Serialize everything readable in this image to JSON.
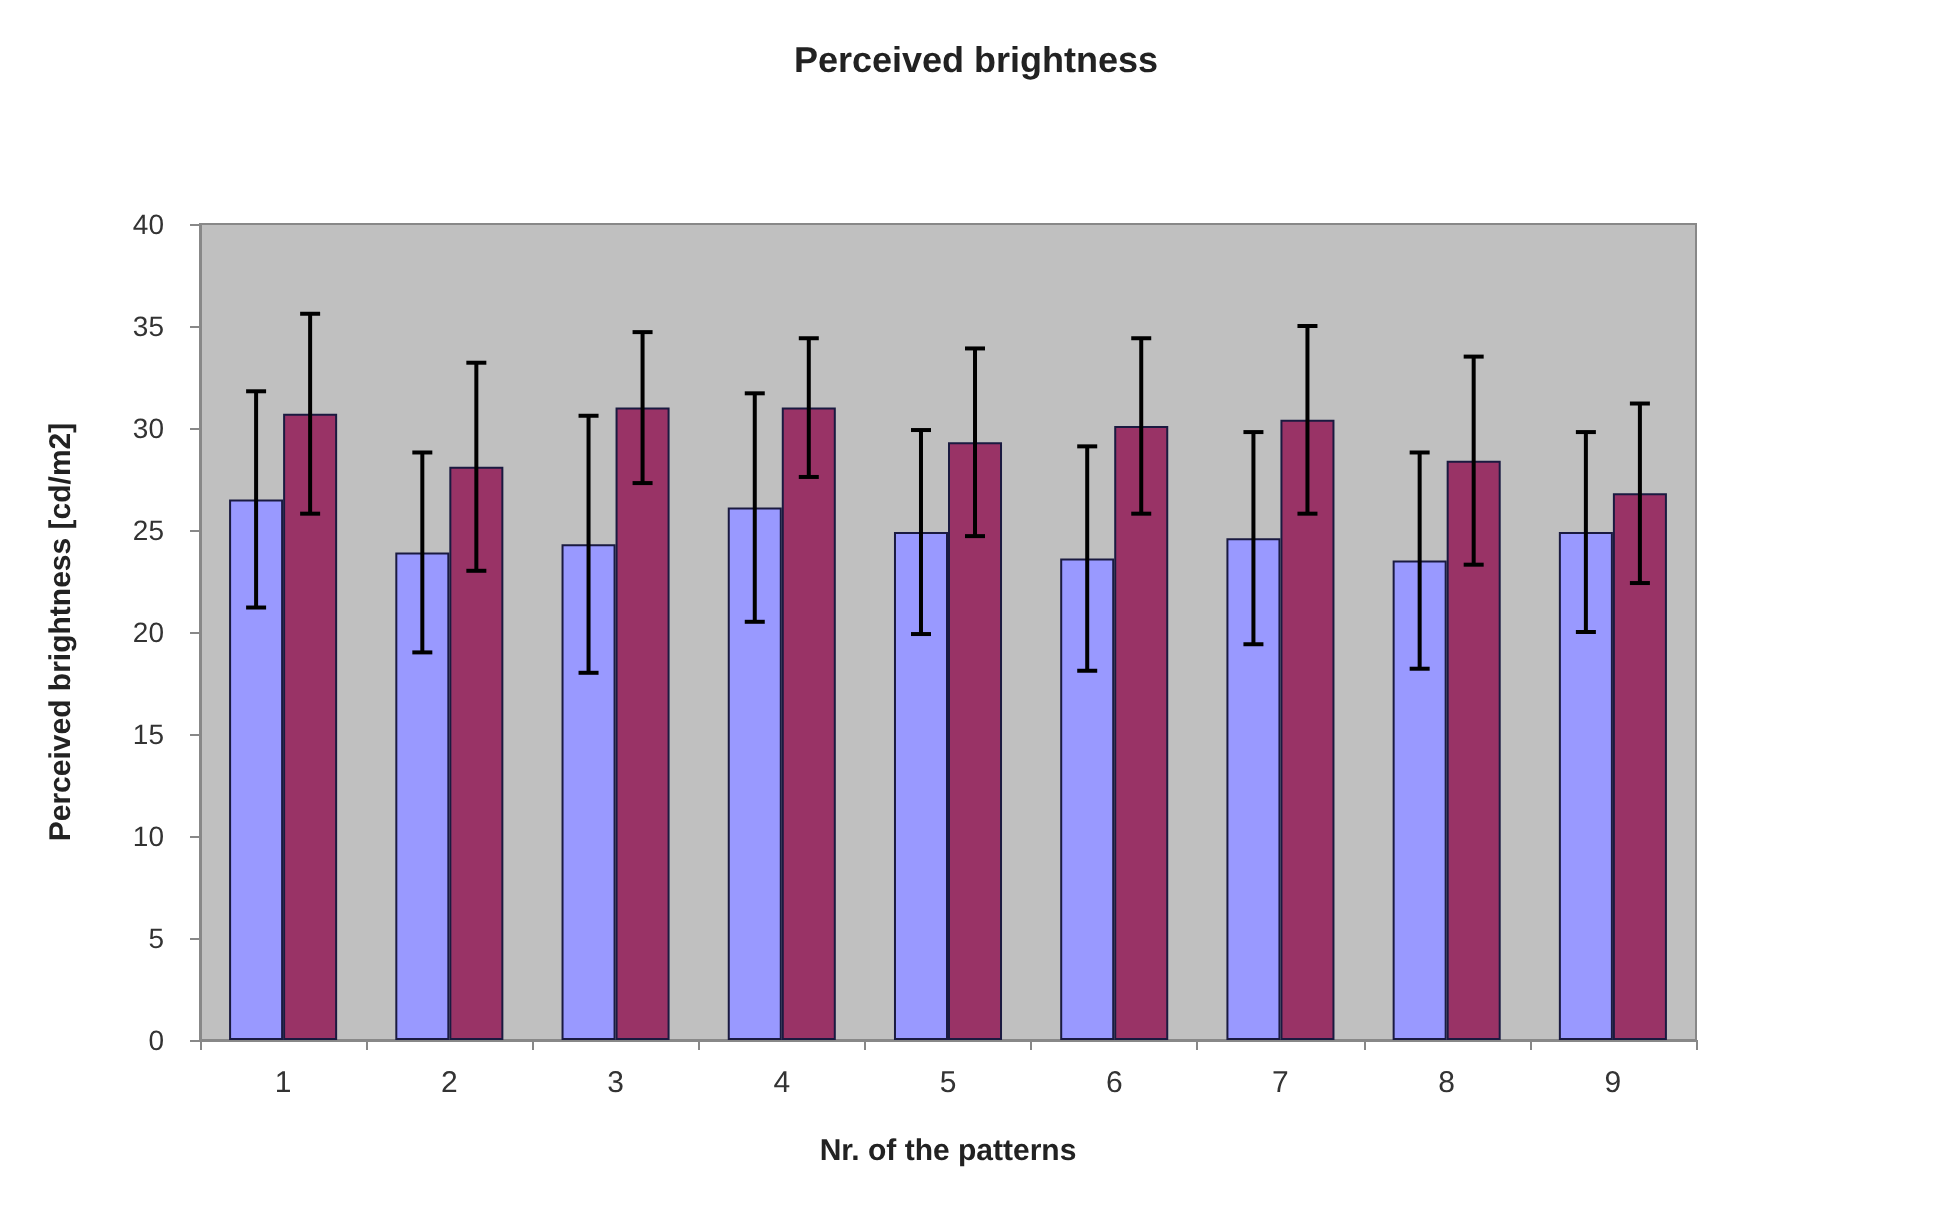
{
  "chart_data": {
    "type": "bar",
    "title": "Perceived brightness",
    "xlabel": "Nr. of the patterns",
    "ylabel": "Perceived brightness [cd/m2]",
    "categories": [
      "1",
      "2",
      "3",
      "4",
      "5",
      "6",
      "7",
      "8",
      "9"
    ],
    "series": [
      {
        "color": "#9999ff",
        "values": [
          26.5,
          23.9,
          24.3,
          26.1,
          24.9,
          23.6,
          24.6,
          23.5,
          24.9
        ],
        "errors": [
          5.3,
          4.9,
          6.3,
          5.6,
          5.0,
          5.5,
          5.2,
          5.3,
          4.9
        ]
      },
      {
        "color": "#993366",
        "values": [
          30.7,
          28.1,
          31.0,
          31.0,
          29.3,
          30.1,
          30.4,
          28.4,
          26.8
        ],
        "errors": [
          4.9,
          5.1,
          3.7,
          3.4,
          4.6,
          4.3,
          4.6,
          5.1,
          4.4
        ]
      }
    ],
    "ylim": [
      0,
      40
    ],
    "yticks": [
      0,
      5,
      10,
      15,
      20,
      25,
      30,
      35,
      40
    ],
    "grid": false
  }
}
